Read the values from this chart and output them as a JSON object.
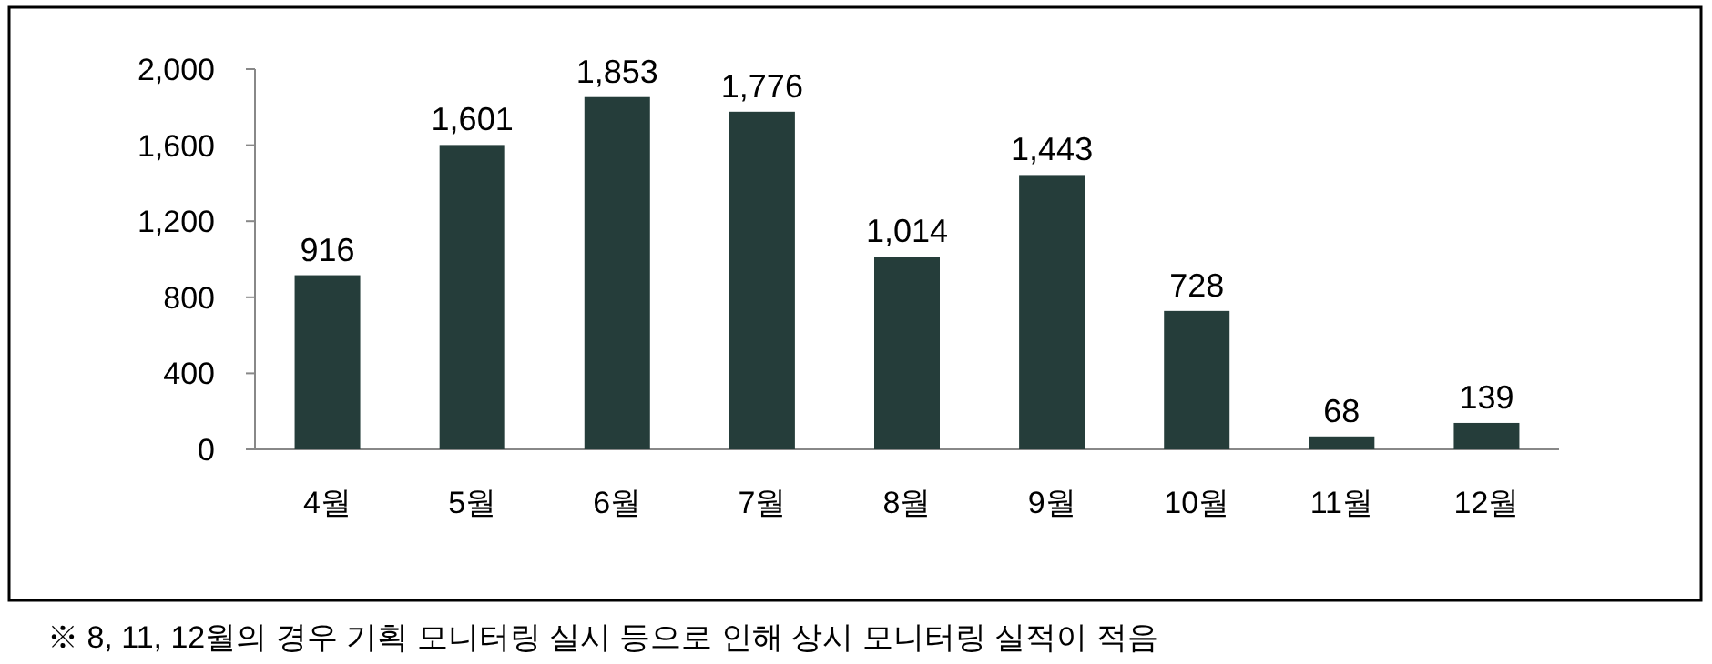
{
  "chart_data": {
    "type": "bar",
    "categories": [
      "4월",
      "5월",
      "6월",
      "7월",
      "8월",
      "9월",
      "10월",
      "11월",
      "12월"
    ],
    "values": [
      916,
      1601,
      1853,
      1776,
      1014,
      1443,
      728,
      68,
      139
    ],
    "color": "#253d3a",
    "ylim": [
      0,
      2000
    ],
    "yticks": [
      0,
      {
        "value": 400,
        "label": "400"
      },
      {
        "value": 800,
        "label": "800"
      },
      {
        "value": 1200,
        "label": "1,200"
      },
      {
        "value": 1600,
        "label": "1,600"
      },
      {
        "value": 2000,
        "label": "2,000"
      }
    ],
    "value_labels": [
      "916",
      "1,601",
      "1,853",
      "1,776",
      "1,014",
      "1,443",
      "728",
      "68",
      "139"
    ],
    "annotations": [
      "※ 8, 11, 12월의 경우 기획 모니터링 실시 등으로 인해 상시 모니터링 실적이 적음"
    ]
  }
}
